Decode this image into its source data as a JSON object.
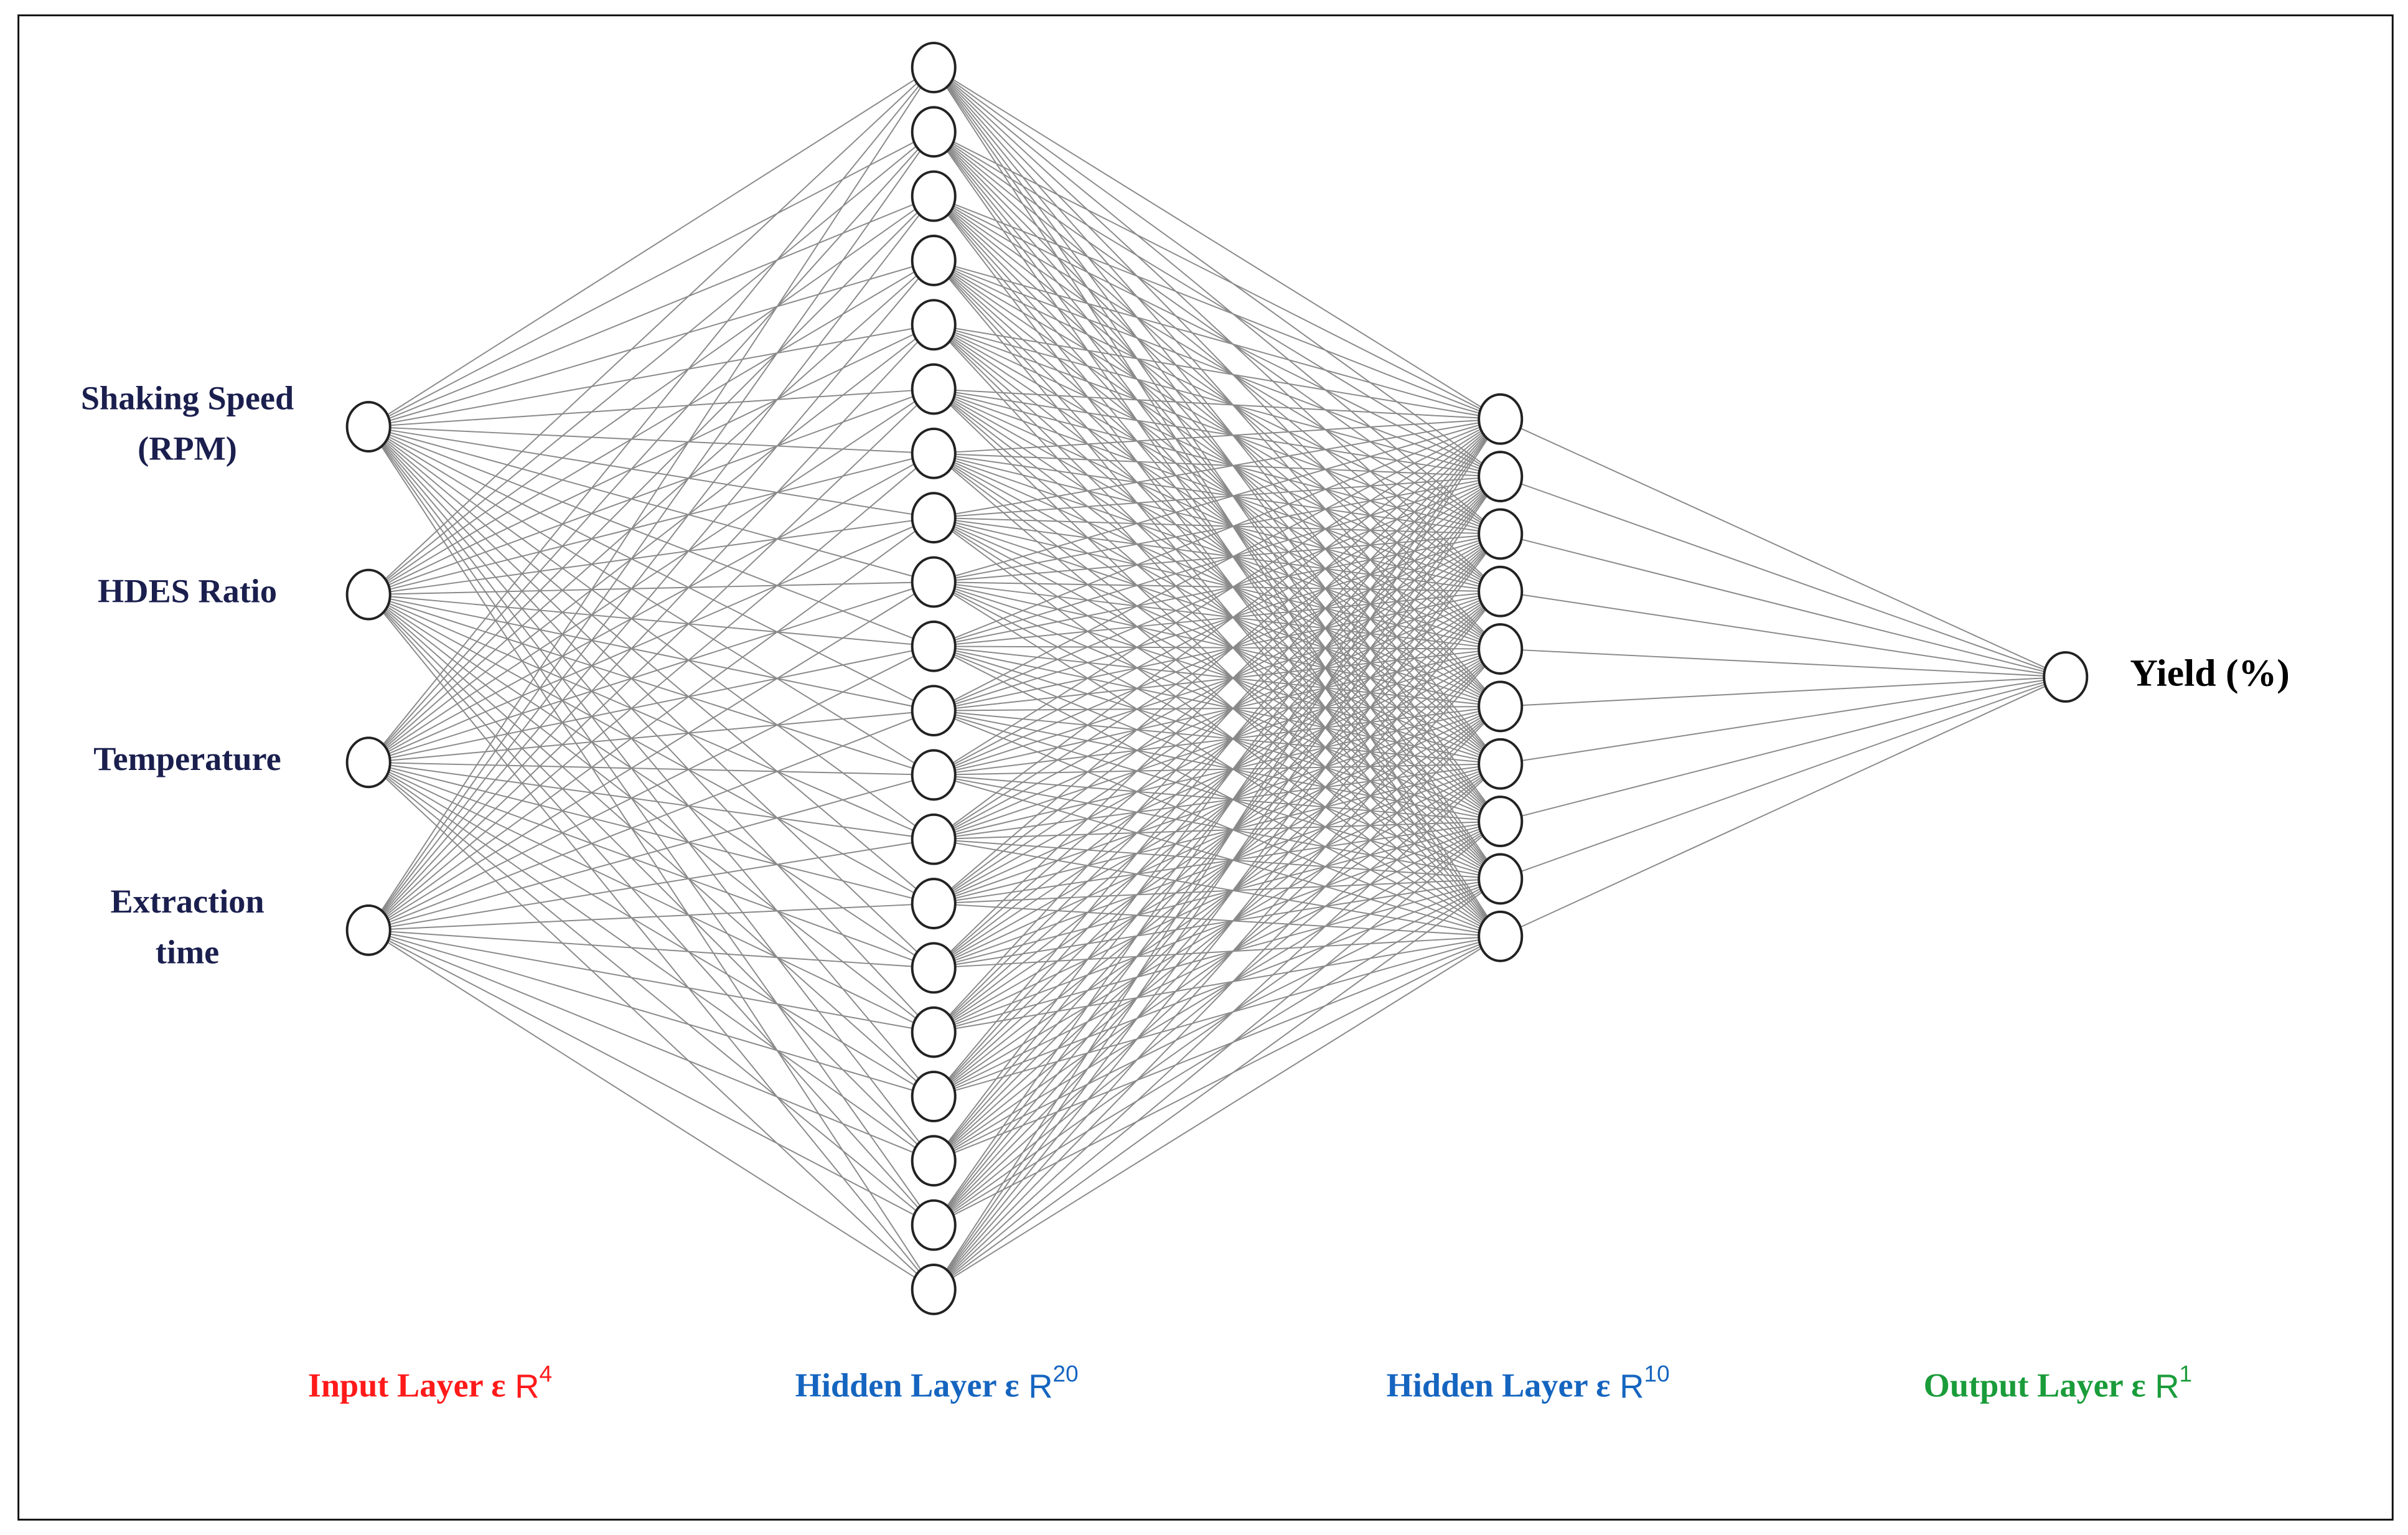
{
  "input_labels": [
    [
      "Shaking Speed",
      "(RPM)"
    ],
    [
      "HDES Ratio"
    ],
    [
      "Temperature"
    ],
    [
      "Extraction",
      "time"
    ]
  ],
  "output_label": "Yield (%)",
  "layers": [
    {
      "caption": "Input  Layer ε",
      "space": "R",
      "dim": 4,
      "color": "#ff1a1a"
    },
    {
      "caption": "Hidden  Layer ε",
      "space": "R",
      "dim": 20,
      "color": "#1565c0"
    },
    {
      "caption": "Hidden  Layer ε",
      "space": "R",
      "dim": 10,
      "color": "#1565c0"
    },
    {
      "caption": "Output  Layer ε",
      "space": "R",
      "dim": 1,
      "color": "#1a9c3a"
    }
  ]
}
